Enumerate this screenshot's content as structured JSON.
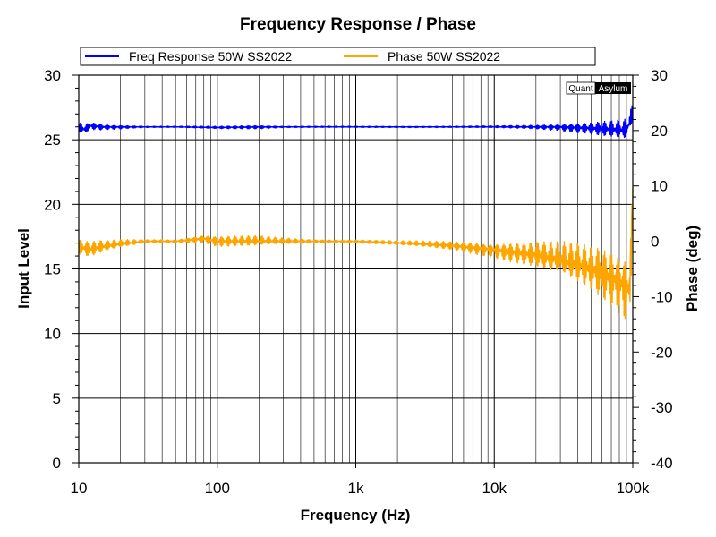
{
  "chart_data": {
    "type": "line",
    "title": "Frequency Response / Phase",
    "xlabel": "Frequency (Hz)",
    "ylabel": "Input Level",
    "y2label": "Phase (deg)",
    "x_scale": "log",
    "xlim": [
      10,
      100000
    ],
    "ylim": [
      0,
      30
    ],
    "y2lim": [
      -40,
      30
    ],
    "grid": true,
    "legend_position": "top",
    "watermark": {
      "left": "Quant",
      "right": "Asylum"
    },
    "x_ticks": [
      {
        "value": 10,
        "label": "10"
      },
      {
        "value": 100,
        "label": "100"
      },
      {
        "value": 1000,
        "label": "1k"
      },
      {
        "value": 10000,
        "label": "10k"
      },
      {
        "value": 100000,
        "label": "100k"
      }
    ],
    "y_ticks": [
      0,
      5,
      10,
      15,
      20,
      25,
      30
    ],
    "y2_ticks": [
      -40,
      -30,
      -20,
      -10,
      0,
      10,
      20,
      30
    ],
    "series": [
      {
        "name": "Freq Response 50W SS2022",
        "axis": "left",
        "color": "#0000ff",
        "x": [
          10,
          11,
          12,
          15,
          20,
          30,
          50,
          100,
          200,
          300,
          500,
          1000,
          2000,
          5000,
          10000,
          20000,
          30000,
          50000,
          70000,
          90000,
          100000
        ],
        "y": [
          26.0,
          25.8,
          26.1,
          26.0,
          26.0,
          26.0,
          26.0,
          25.95,
          26.0,
          26.0,
          26.0,
          26.0,
          26.0,
          26.0,
          26.0,
          26.0,
          26.0,
          25.9,
          25.8,
          25.7,
          27.0
        ],
        "ripple": [
          0.4,
          0.4,
          0.3,
          0.25,
          0.15,
          0.05,
          0.05,
          0.1,
          0.15,
          0.05,
          0.05,
          0.05,
          0.05,
          0.05,
          0.08,
          0.15,
          0.3,
          0.5,
          0.7,
          0.9,
          0.8
        ]
      },
      {
        "name": "Phase 50W SS2022",
        "axis": "right",
        "color": "#ffa500",
        "x": [
          10,
          12,
          15,
          20,
          30,
          50,
          80,
          100,
          200,
          300,
          500,
          1000,
          2000,
          5000,
          10000,
          20000,
          30000,
          50000,
          70000,
          90000,
          95000,
          100000
        ],
        "y": [
          -1.0,
          -1.5,
          -1.0,
          -0.5,
          0.0,
          0.0,
          0.5,
          0.0,
          0.0,
          0.0,
          0.0,
          0.0,
          -0.3,
          -0.8,
          -1.5,
          -2.5,
          -3.5,
          -5.0,
          -6.5,
          -8.0,
          -8.5,
          8.0
        ],
        "ripple": [
          1.5,
          1.5,
          1.2,
          0.8,
          0.3,
          0.3,
          0.8,
          1.0,
          1.0,
          0.6,
          0.3,
          0.3,
          0.4,
          0.8,
          1.5,
          2.5,
          3.5,
          4.5,
          5.5,
          6.5,
          6.5,
          5.0
        ]
      }
    ]
  }
}
